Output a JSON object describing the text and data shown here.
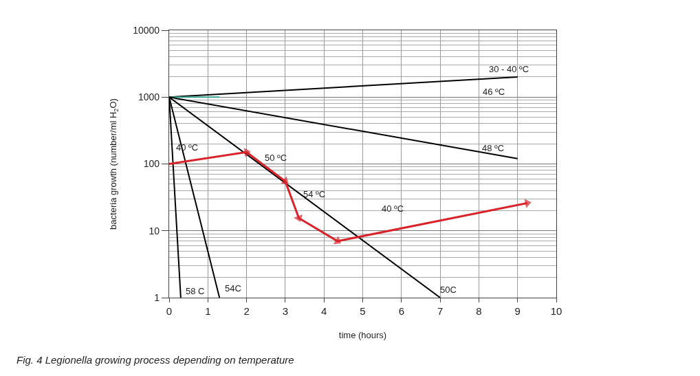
{
  "chart_data": {
    "type": "line",
    "title": "Fig. 4 Legionella growing process depending on temperature",
    "xlabel": "time (hours)",
    "ylabel": "bacteria growth (number/ml H$_{2}$O)",
    "xlim": [
      0,
      10
    ],
    "xticks": [
      0,
      1,
      2,
      3,
      4,
      5,
      6,
      7,
      8,
      9,
      10
    ],
    "ylim": [
      1,
      10000
    ],
    "yticks": [
      1,
      10,
      100,
      1000,
      10000
    ],
    "log": "y",
    "grid": true,
    "legend": false,
    "line_style": "solid",
    "series": [
      {
        "name": "30 - 40 ºC",
        "x": [
          0,
          9
        ],
        "values": [
          1000,
          2000
        ],
        "color": "#000000"
      },
      {
        "x": [
          0,
          1.3
        ],
        "values": [
          1000,
          1000
        ],
        "color": "#3aa58c"
      },
      {
        "name": "48 ºC",
        "x": [
          0,
          9
        ],
        "values": [
          1000,
          120
        ],
        "color": "#000000"
      },
      {
        "name": "50C",
        "x": [
          0,
          7
        ],
        "values": [
          1000,
          1
        ],
        "color": "#000000"
      },
      {
        "name": "54C",
        "x": [
          0,
          1.3
        ],
        "values": [
          1000,
          1
        ],
        "color": "#000000"
      },
      {
        "name": "58 C",
        "x": [
          0,
          0.3
        ],
        "values": [
          1000,
          1
        ],
        "color": "#000000"
      },
      {
        "x": [
          0,
          2,
          3,
          3.35,
          4.35,
          9.25
        ],
        "values": [
          100,
          150,
          55,
          15.5,
          7,
          26
        ],
        "color": "#d8232a",
        "marker": "triangle"
      }
    ],
    "annotations": [
      "46 ºC",
      "40 ºC",
      "50 ºC",
      "54 ºC",
      "40 ºC"
    ]
  }
}
